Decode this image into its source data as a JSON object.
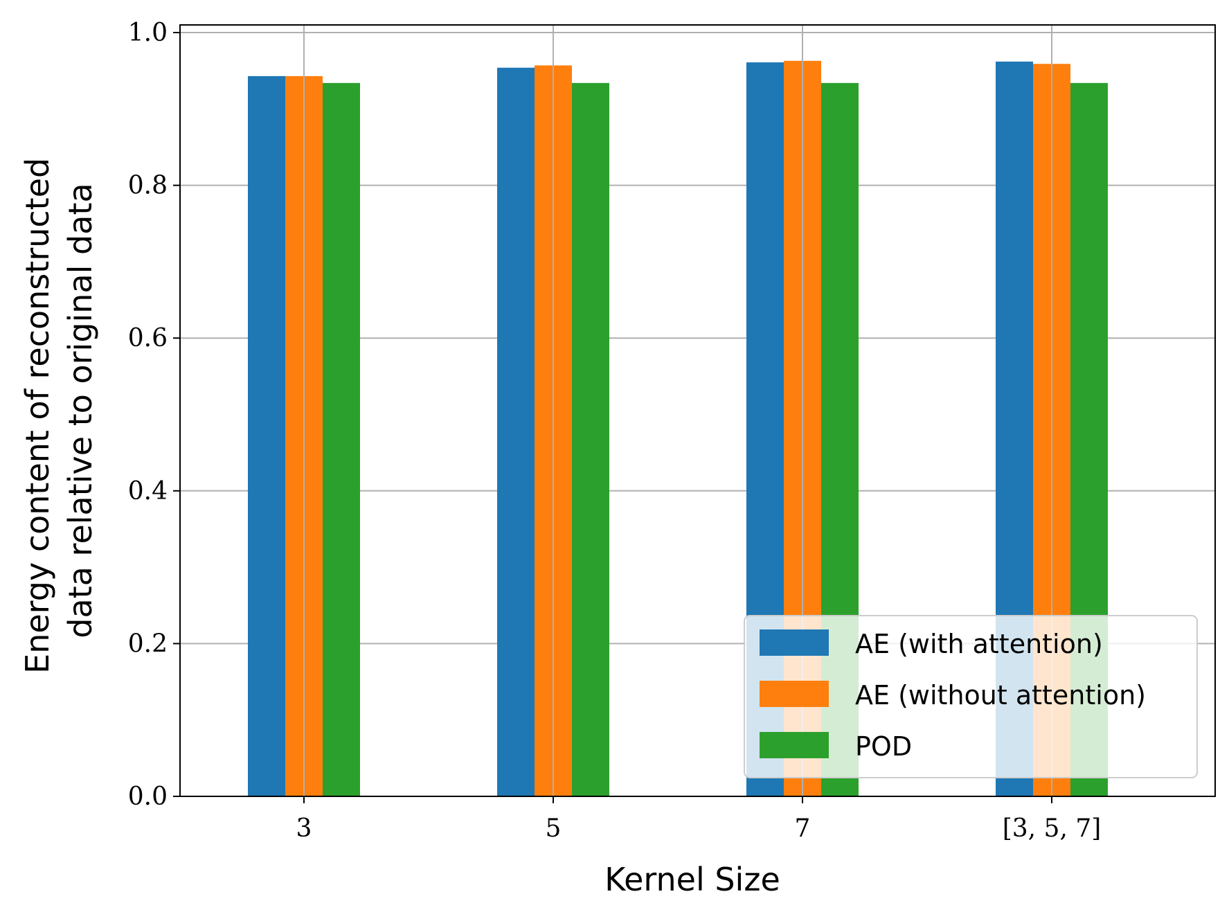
{
  "chart_data": {
    "type": "bar",
    "title": "",
    "xlabel": "Kernel Size",
    "ylabel_lines": [
      "Energy content of reconstructed",
      "data relative to original data"
    ],
    "categories": [
      "3",
      "5",
      "7",
      "[3, 5, 7]"
    ],
    "series": [
      {
        "name": "AE (with attention)",
        "color": "#1f77b4",
        "values": [
          0.943,
          0.954,
          0.961,
          0.962
        ]
      },
      {
        "name": "AE (without attention)",
        "color": "#ff7f0e",
        "values": [
          0.943,
          0.957,
          0.963,
          0.959
        ]
      },
      {
        "name": "POD",
        "color": "#2ca02c",
        "values": [
          0.934,
          0.934,
          0.934,
          0.934
        ]
      }
    ],
    "ylim": [
      0.0,
      1.01
    ],
    "yticks": [
      0.0,
      0.2,
      0.4,
      0.6,
      0.8,
      1.0
    ],
    "ytick_labels": [
      "0.0",
      "0.2",
      "0.4",
      "0.6",
      "0.8",
      "1.0"
    ],
    "grid": true,
    "legend_position": "lower right"
  }
}
